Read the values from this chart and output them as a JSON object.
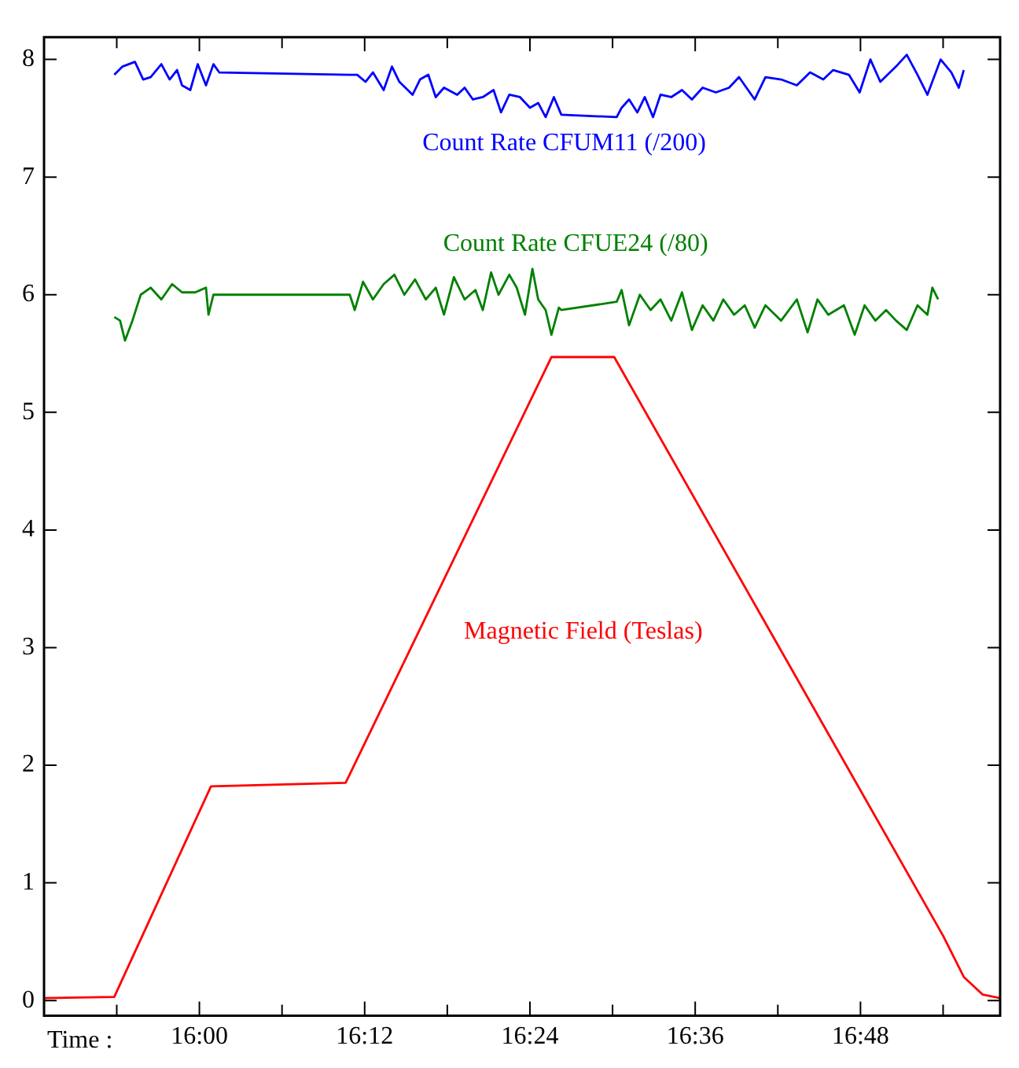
{
  "chart_data": {
    "type": "line",
    "xlabel": "Time :",
    "xlim": [
      15.812,
      16.969
    ],
    "ylim": [
      -0.13,
      8.19
    ],
    "xticks": [
      {
        "value": 15.9,
        "label": null
      },
      {
        "value": 16,
        "label": "16:00"
      },
      {
        "value": 16.1,
        "label": null
      },
      {
        "value": 16.2,
        "label": "16:12"
      },
      {
        "value": 16.3,
        "label": null
      },
      {
        "value": 16.4,
        "label": "16:24"
      },
      {
        "value": 16.5,
        "label": null
      },
      {
        "value": 16.6,
        "label": "16:36"
      },
      {
        "value": 16.7,
        "label": null
      },
      {
        "value": 16.8,
        "label": "16:48"
      },
      {
        "value": 16.9,
        "label": null
      }
    ],
    "yticks": [
      0,
      1,
      2,
      3,
      4,
      5,
      6,
      7,
      8
    ],
    "grid": false,
    "legend": false,
    "series": [
      {
        "name": "Count Rate CFUM11 (/200)",
        "color": "#0000ff",
        "x": [
          15.897,
          15.907,
          15.922,
          15.932,
          15.941,
          15.954,
          15.964,
          15.973,
          15.979,
          15.989,
          15.998,
          16.008,
          16.017,
          16.024,
          16.182,
          16.191,
          16.201,
          16.21,
          16.223,
          16.233,
          16.242,
          16.258,
          16.267,
          16.277,
          16.286,
          16.296,
          16.312,
          16.321,
          16.331,
          16.343,
          16.356,
          16.365,
          16.375,
          16.388,
          16.4,
          16.41,
          16.419,
          16.429,
          16.438,
          16.505,
          16.511,
          16.52,
          16.53,
          16.539,
          16.549,
          16.558,
          16.571,
          16.584,
          16.596,
          16.609,
          16.625,
          16.641,
          16.653,
          16.672,
          16.685,
          16.704,
          16.723,
          16.739,
          16.755,
          16.767,
          16.786,
          16.799,
          16.812,
          16.824,
          16.843,
          16.856,
          16.869,
          16.881,
          16.897,
          16.91,
          16.919,
          16.925
        ],
        "values": [
          7.87,
          7.94,
          7.98,
          7.83,
          7.85,
          7.96,
          7.83,
          7.91,
          7.78,
          7.74,
          7.96,
          7.78,
          7.96,
          7.89,
          7.87,
          7.87,
          7.81,
          7.89,
          7.74,
          7.94,
          7.81,
          7.7,
          7.83,
          7.87,
          7.68,
          7.76,
          7.7,
          7.76,
          7.66,
          7.68,
          7.74,
          7.55,
          7.7,
          7.68,
          7.59,
          7.63,
          7.51,
          7.68,
          7.53,
          7.51,
          7.59,
          7.66,
          7.55,
          7.68,
          7.51,
          7.7,
          7.68,
          7.74,
          7.66,
          7.76,
          7.72,
          7.76,
          7.85,
          7.66,
          7.85,
          7.83,
          7.78,
          7.89,
          7.83,
          7.91,
          7.87,
          7.72,
          8.0,
          7.81,
          7.94,
          8.04,
          7.87,
          7.7,
          8.0,
          7.89,
          7.76,
          7.91
        ]
      },
      {
        "name": "Count Rate CFUE24 (/80)",
        "color": "#008000",
        "x": [
          15.897,
          15.904,
          15.91,
          15.919,
          15.929,
          15.941,
          15.954,
          15.967,
          15.979,
          15.995,
          16.008,
          16.011,
          16.017,
          16.182,
          16.188,
          16.198,
          16.21,
          16.223,
          16.236,
          16.248,
          16.261,
          16.274,
          16.286,
          16.296,
          16.308,
          16.321,
          16.334,
          16.343,
          16.353,
          16.362,
          16.375,
          16.384,
          16.394,
          16.403,
          16.41,
          16.419,
          16.426,
          16.435,
          16.438,
          16.505,
          16.511,
          16.52,
          16.533,
          16.546,
          16.558,
          16.571,
          16.584,
          16.596,
          16.609,
          16.622,
          16.634,
          16.647,
          16.66,
          16.672,
          16.685,
          16.704,
          16.723,
          16.736,
          16.748,
          16.761,
          16.78,
          16.793,
          16.805,
          16.818,
          16.831,
          16.843,
          16.856,
          16.869,
          16.881,
          16.887,
          16.894
        ],
        "values": [
          5.81,
          5.78,
          5.61,
          5.78,
          6.0,
          6.06,
          5.96,
          6.09,
          6.02,
          6.02,
          6.06,
          5.83,
          6.0,
          6.0,
          5.87,
          6.11,
          5.96,
          6.09,
          6.17,
          6.0,
          6.13,
          5.96,
          6.06,
          5.83,
          6.15,
          5.96,
          6.04,
          5.87,
          6.19,
          6.0,
          6.17,
          6.06,
          5.83,
          6.22,
          5.96,
          5.87,
          5.66,
          5.89,
          5.87,
          5.94,
          6.04,
          5.74,
          6.0,
          5.87,
          5.96,
          5.78,
          6.02,
          5.7,
          5.91,
          5.78,
          5.96,
          5.83,
          5.91,
          5.72,
          5.91,
          5.78,
          5.96,
          5.68,
          5.96,
          5.83,
          5.91,
          5.66,
          5.91,
          5.78,
          5.87,
          5.78,
          5.7,
          5.91,
          5.83,
          6.06,
          5.96
        ]
      },
      {
        "name": "Magnetic Field (Teslas)",
        "color": "#ff0000",
        "x": [
          15.812,
          15.897,
          16.014,
          16.177,
          16.426,
          16.502,
          16.9,
          16.925,
          16.948,
          16.969
        ],
        "values": [
          0.02,
          0.03,
          1.82,
          1.85,
          5.47,
          5.47,
          0.55,
          0.2,
          0.05,
          0.02
        ]
      }
    ]
  }
}
